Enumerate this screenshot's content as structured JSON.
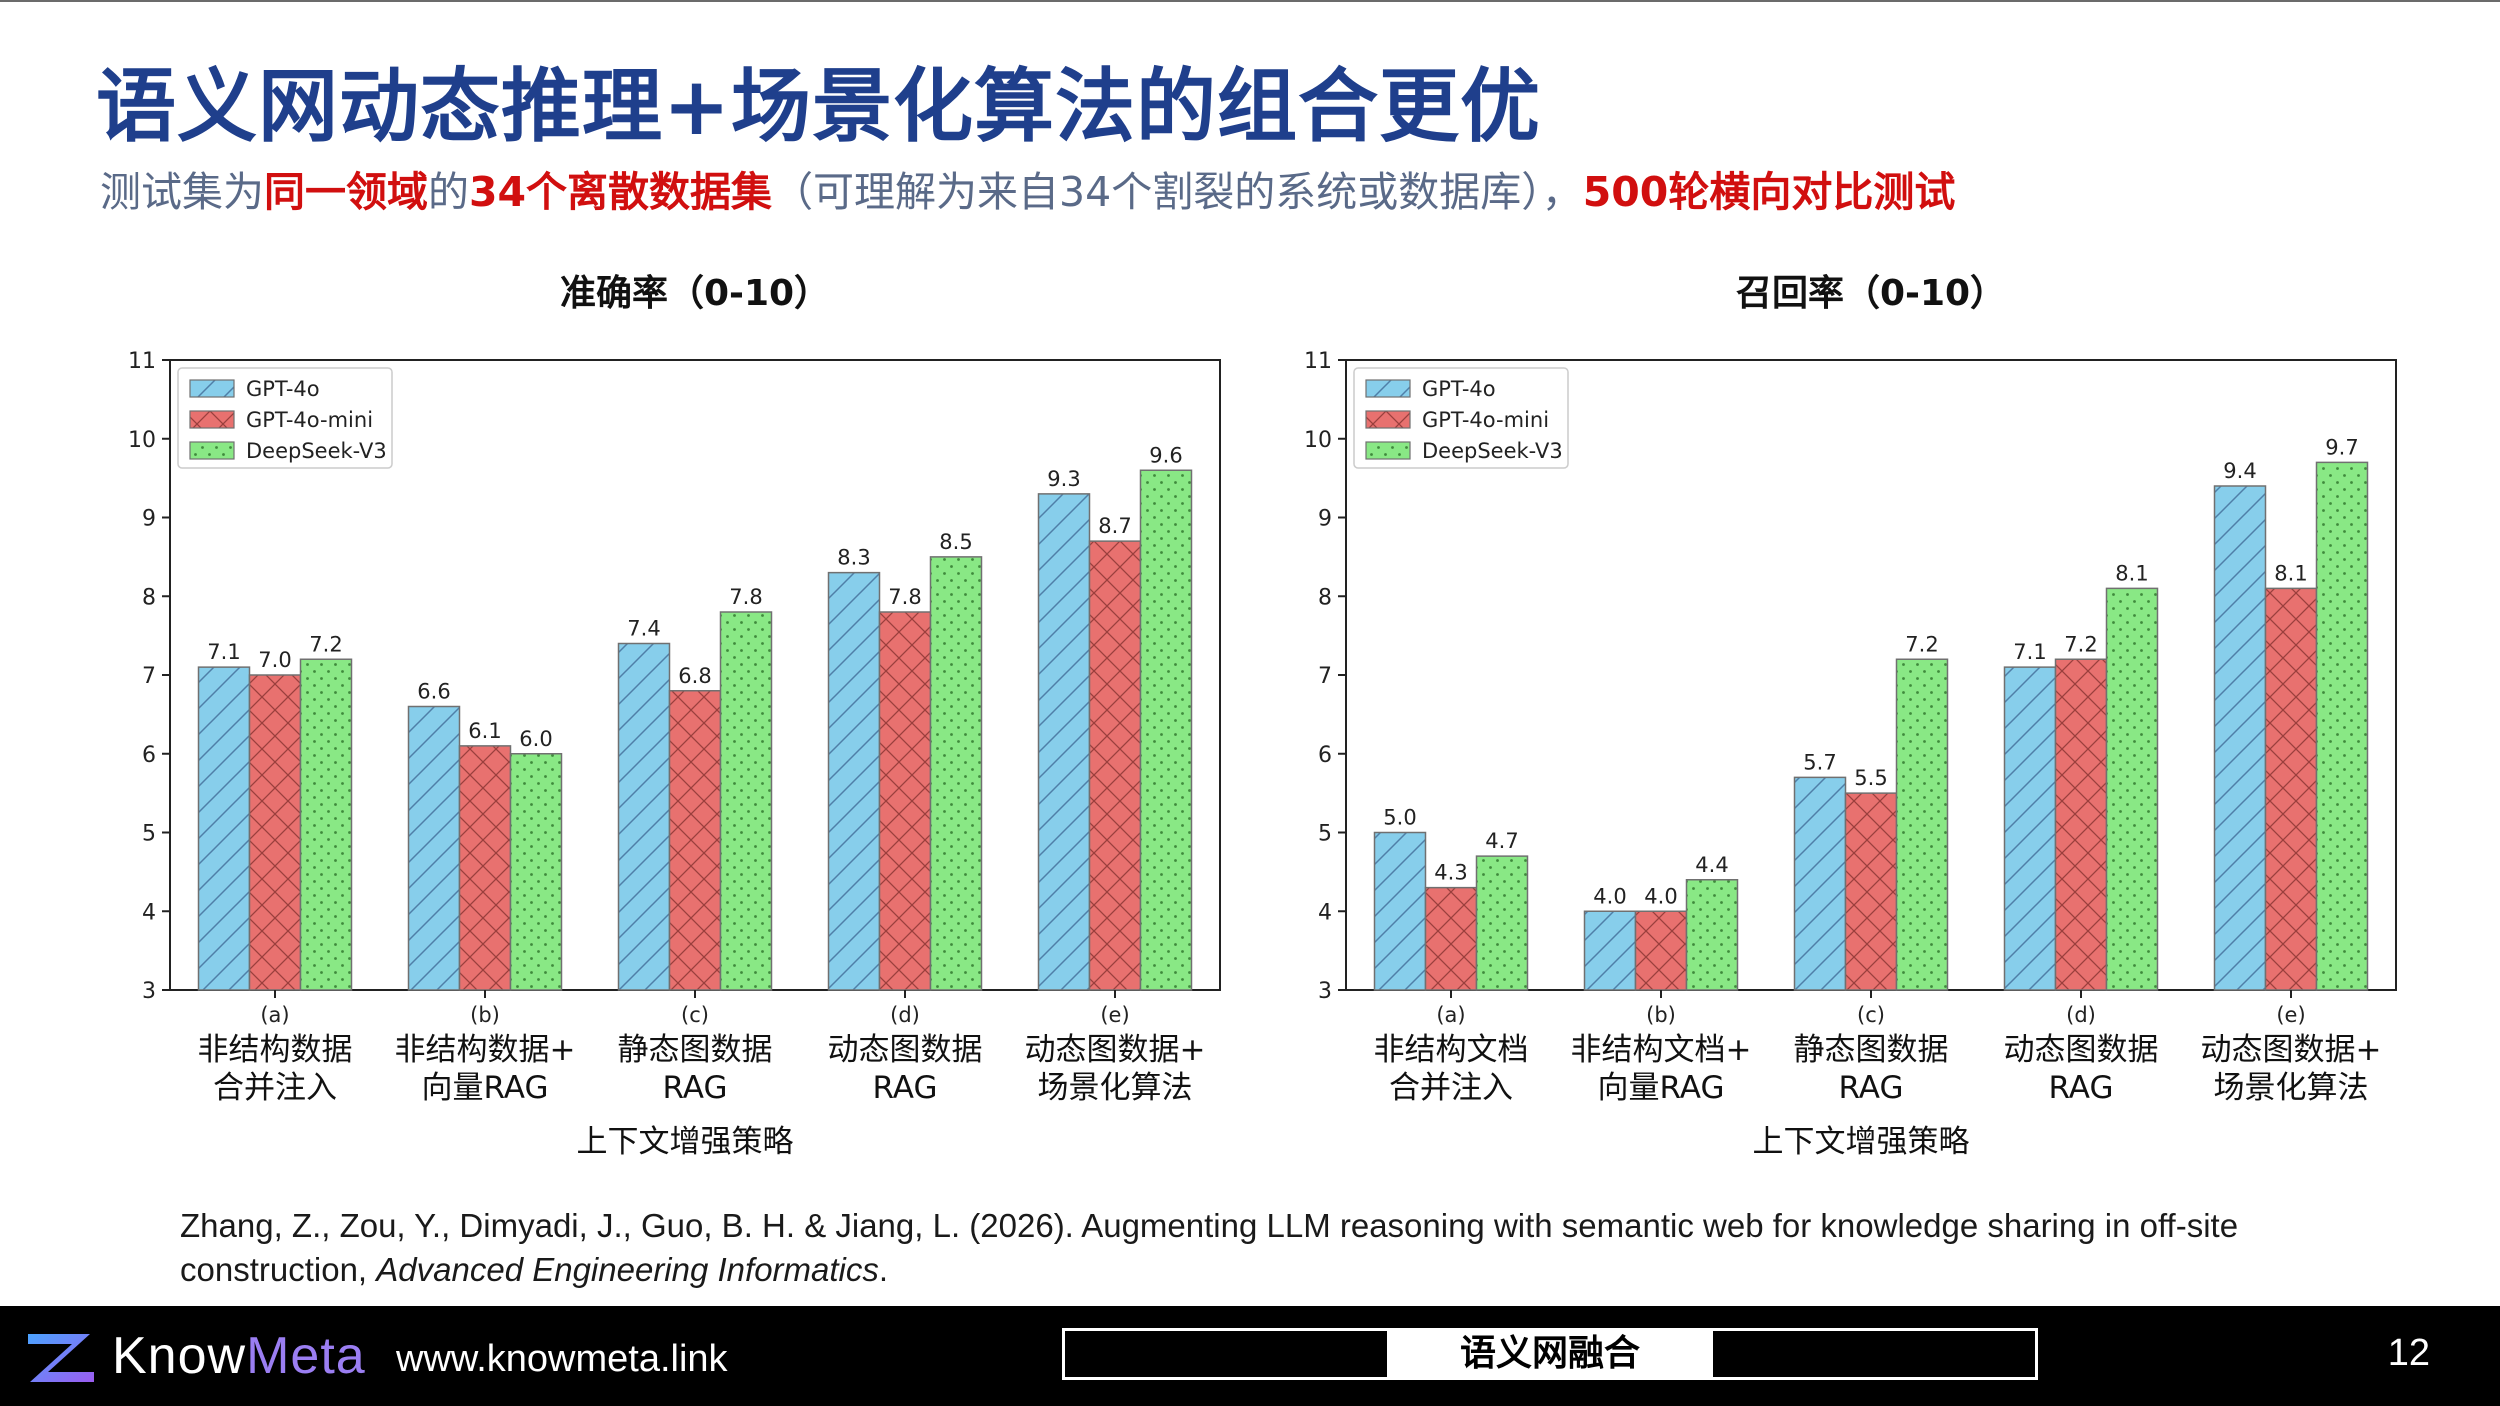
{
  "slide": {
    "title": "语义网动态推理+场景化算法的组合更优",
    "subtitle_parts": [
      {
        "text": "测试集为",
        "hl": false
      },
      {
        "text": "同一领域",
        "hl": true
      },
      {
        "text": "的",
        "hl": false
      },
      {
        "text": "34个离散数据集",
        "hl": true
      },
      {
        "text": "（可理解为来自34个割裂的系统或数据库），",
        "hl": false
      },
      {
        "text": "500轮横向对比测试",
        "hl": true
      }
    ],
    "citation_main": "Zhang, Z., Zou, Y., Dimyadi, J., Guo, B. H. & Jiang, L. (2026). Augmenting LLM reasoning with semantic web for knowledge sharing in off-site construction, ",
    "citation_journal": "Advanced Engineering Informatics",
    "citation_end": "."
  },
  "footer": {
    "brand_know": "Know",
    "brand_meta": "Meta",
    "url": "www.knowmeta.link",
    "section": "语义网融合",
    "page": "12"
  },
  "colors": {
    "gpt4o": "#87ceeb",
    "gpt4omini": "#e8716f",
    "deepseek": "#89e885",
    "title": "#1f3f8c",
    "highlight": "#d10f0f"
  },
  "chart_data": [
    {
      "type": "bar",
      "title": "准确率（0-10）",
      "xlabel": "上下文增强策略",
      "ylabel": "",
      "ylim": [
        3,
        11
      ],
      "yticks": [
        3,
        4,
        5,
        6,
        7,
        8,
        9,
        10,
        11
      ],
      "legend_position": "top-left",
      "grid": false,
      "categories": [
        {
          "code": "(a)",
          "line1": "非结构数据",
          "line2": "合并注入"
        },
        {
          "code": "(b)",
          "line1": "非结构数据+",
          "line2": "向量RAG"
        },
        {
          "code": "(c)",
          "line1": "静态图数据",
          "line2": "RAG"
        },
        {
          "code": "(d)",
          "line1": "动态图数据",
          "line2": "RAG"
        },
        {
          "code": "(e)",
          "line1": "动态图数据+",
          "line2": "场景化算法"
        }
      ],
      "series": [
        {
          "name": "GPT-4o",
          "values": [
            7.1,
            6.6,
            7.4,
            8.3,
            9.3
          ],
          "labels": [
            "7.1",
            "6.6",
            "7.4",
            "8.3",
            "9.3"
          ]
        },
        {
          "name": "GPT-4o-mini",
          "values": [
            7.0,
            6.1,
            6.8,
            7.8,
            8.7
          ],
          "labels": [
            "7.0",
            "6.1",
            "6.8",
            "7.8",
            "8.7"
          ]
        },
        {
          "name": "DeepSeek-V3",
          "values": [
            7.2,
            6.0,
            7.8,
            8.5,
            9.6
          ],
          "labels": [
            "7.2",
            "6.0",
            "7.8",
            "8.5",
            "9.6"
          ]
        }
      ]
    },
    {
      "type": "bar",
      "title": "召回率（0-10）",
      "xlabel": "上下文增强策略",
      "ylabel": "",
      "ylim": [
        3,
        11
      ],
      "yticks": [
        3,
        4,
        5,
        6,
        7,
        8,
        9,
        10,
        11
      ],
      "legend_position": "top-left",
      "grid": false,
      "categories": [
        {
          "code": "(a)",
          "line1": "非结构文档",
          "line2": "合并注入"
        },
        {
          "code": "(b)",
          "line1": "非结构文档+",
          "line2": "向量RAG"
        },
        {
          "code": "(c)",
          "line1": "静态图数据",
          "line2": "RAG"
        },
        {
          "code": "(d)",
          "line1": "动态图数据",
          "line2": "RAG"
        },
        {
          "code": "(e)",
          "line1": "动态图数据+",
          "line2": "场景化算法"
        }
      ],
      "series": [
        {
          "name": "GPT-4o",
          "values": [
            5.0,
            4.0,
            5.7,
            7.1,
            9.4
          ],
          "labels": [
            "5.0",
            "4.0",
            "5.7",
            "7.1",
            "9.4"
          ]
        },
        {
          "name": "GPT-4o-mini",
          "values": [
            4.3,
            4.0,
            5.5,
            7.2,
            8.1
          ],
          "labels": [
            "4.3",
            "4.0",
            "5.5",
            "7.2",
            "8.1"
          ]
        },
        {
          "name": "DeepSeek-V3",
          "values": [
            4.7,
            4.4,
            7.2,
            8.1,
            9.7
          ],
          "labels": [
            "4.7",
            "4.4",
            "7.2",
            "8.1",
            "9.7"
          ]
        }
      ]
    }
  ]
}
